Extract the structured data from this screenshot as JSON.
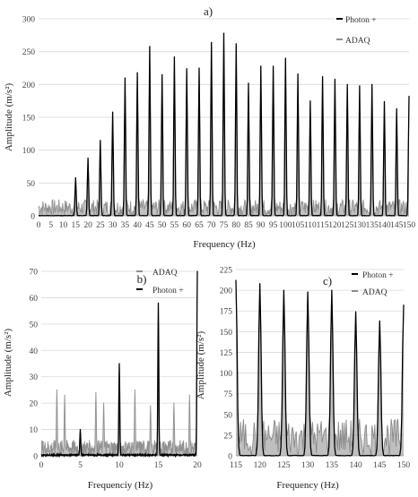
{
  "chart_data": [
    {
      "panel": "a)",
      "type": "line",
      "xlabel": "Frequency (Hz)",
      "ylabel": "Amplitude (m/s²)",
      "xlim": [
        0,
        150
      ],
      "ylim": [
        0,
        300
      ],
      "x_ticks": [
        "0",
        "5",
        "10",
        "15",
        "20",
        "25",
        "30",
        "35",
        "40",
        "45",
        "50",
        "55",
        "60",
        "65",
        "70",
        "75",
        "80",
        "85",
        "90",
        "95",
        "100",
        "105",
        "110",
        "115",
        "120",
        "125",
        "130",
        "135",
        "140",
        "145",
        "150"
      ],
      "y_ticks": [
        "0",
        "50",
        "100",
        "150",
        "200",
        "250",
        "300"
      ],
      "legend": {
        "position": "top-right",
        "entries": [
          "Photon +",
          "ADAQ"
        ]
      },
      "series": [
        {
          "name": "Photon +",
          "color": "#000000",
          "peaks_x": [
            15,
            20,
            25,
            30,
            35,
            40,
            45,
            50,
            55,
            60,
            65,
            70,
            75,
            80,
            85,
            90,
            95,
            100,
            105,
            110,
            115,
            120,
            125,
            130,
            135,
            140,
            145,
            150
          ],
          "peaks_y": [
            58,
            88,
            115,
            158,
            210,
            218,
            258,
            215,
            242,
            224,
            225,
            264,
            278,
            262,
            202,
            228,
            228,
            240,
            216,
            175,
            212,
            208,
            200,
            198,
            200,
            174,
            163,
            182
          ]
        },
        {
          "name": "ADAQ",
          "color": "#909090",
          "peaks_x": [
            15,
            20,
            25,
            30,
            35,
            40,
            45,
            50,
            55,
            60,
            65,
            70,
            75,
            80,
            85,
            90,
            95,
            100,
            105,
            110,
            115,
            120,
            125,
            130,
            135,
            140,
            145,
            150
          ],
          "peaks_y": [
            54,
            84,
            110,
            150,
            203,
            212,
            250,
            208,
            236,
            218,
            220,
            256,
            270,
            254,
            195,
            221,
            222,
            233,
            210,
            170,
            206,
            202,
            194,
            192,
            194,
            168,
            157,
            176
          ],
          "noise_floor": 25
        }
      ]
    },
    {
      "panel": "b)",
      "type": "line",
      "xlabel": "Frequenciy (Hz)",
      "ylabel": "Amplitude (m/s²)",
      "xlim": [
        0,
        20
      ],
      "ylim": [
        0,
        70
      ],
      "x_ticks": [
        "0",
        "5",
        "10",
        "15",
        "20"
      ],
      "y_ticks": [
        "0",
        "10",
        "20",
        "30",
        "40",
        "50",
        "60",
        "70"
      ],
      "legend": {
        "position": "top",
        "entries": [
          "ADAQ",
          "Photon +"
        ]
      },
      "series": [
        {
          "name": "Photon +",
          "color": "#000000",
          "peaks_x": [
            5,
            10,
            15,
            20
          ],
          "peaks_y": [
            10,
            35,
            58,
            70
          ]
        },
        {
          "name": "ADAQ",
          "color": "#909090",
          "peaks_x": [
            2,
            3,
            5,
            7,
            8,
            10,
            12,
            14,
            15,
            17,
            19,
            20
          ],
          "peaks_y": [
            25,
            23,
            9,
            24,
            20,
            17,
            25,
            19,
            29,
            20,
            23,
            40
          ]
        }
      ]
    },
    {
      "panel": "c)",
      "type": "line",
      "xlabel": "Frequency (Hz)",
      "ylabel": "Amplitude (m/s²)",
      "xlim": [
        115,
        150
      ],
      "ylim": [
        0,
        225
      ],
      "x_ticks": [
        "115",
        "120",
        "125",
        "130",
        "135",
        "140",
        "145",
        "150"
      ],
      "y_ticks": [
        "0",
        "25",
        "50",
        "75",
        "100",
        "125",
        "150",
        "175",
        "200",
        "225"
      ],
      "legend": {
        "position": "top-right",
        "entries": [
          "Photon +",
          "ADAQ"
        ]
      },
      "series": [
        {
          "name": "Photon +",
          "color": "#000000",
          "peaks_x": [
            115,
            120,
            125,
            130,
            135,
            140,
            145,
            150
          ],
          "peaks_y": [
            212,
            208,
            200,
            198,
            200,
            174,
            163,
            182
          ]
        },
        {
          "name": "ADAQ",
          "color": "#8a8a8a",
          "peaks_x": [
            115,
            120,
            125,
            130,
            135,
            140,
            145,
            150
          ],
          "peaks_y": [
            205,
            200,
            193,
            190,
            193,
            167,
            156,
            176
          ],
          "noise_floor": 45
        }
      ]
    }
  ]
}
